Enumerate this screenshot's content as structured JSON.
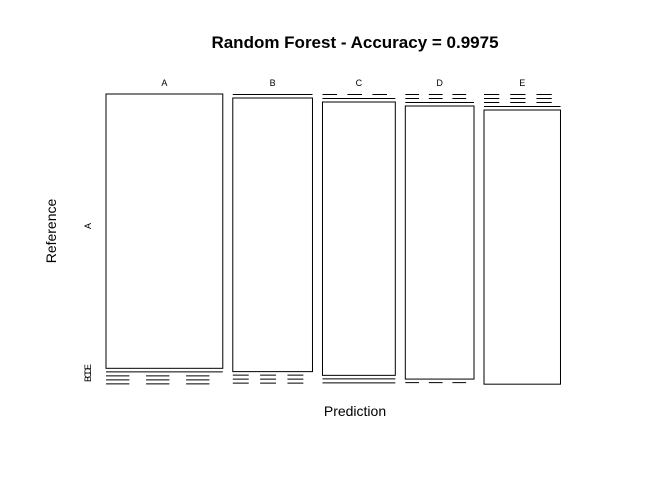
{
  "chart_data": {
    "type": "mosaic",
    "title": "Random Forest - Accuracy = 0.9975",
    "xlabel": "Prediction",
    "ylabel": "Reference",
    "x_categories": [
      "A",
      "B",
      "C",
      "D",
      "E"
    ],
    "y_categories": [
      "A",
      "B",
      "C",
      "D",
      "E"
    ],
    "y_tick_labels": [
      "A",
      "B",
      "C",
      "D",
      "E"
    ],
    "column_widths": [
      0.255,
      0.174,
      0.159,
      0.15,
      0.167
    ],
    "confusion_proportions": [
      [
        0.9975,
        0.001,
        0.0005,
        0.0005,
        0.0005
      ],
      [
        0.0035,
        0.995,
        0.0005,
        0.0005,
        0.0005
      ],
      [
        0.0005,
        0.0035,
        0.994,
        0.001,
        0.001
      ],
      [
        0.0005,
        0.0005,
        0.0055,
        0.993,
        0.0005
      ],
      [
        0.0005,
        0.0005,
        0.0005,
        0.0015,
        0.997
      ]
    ]
  }
}
